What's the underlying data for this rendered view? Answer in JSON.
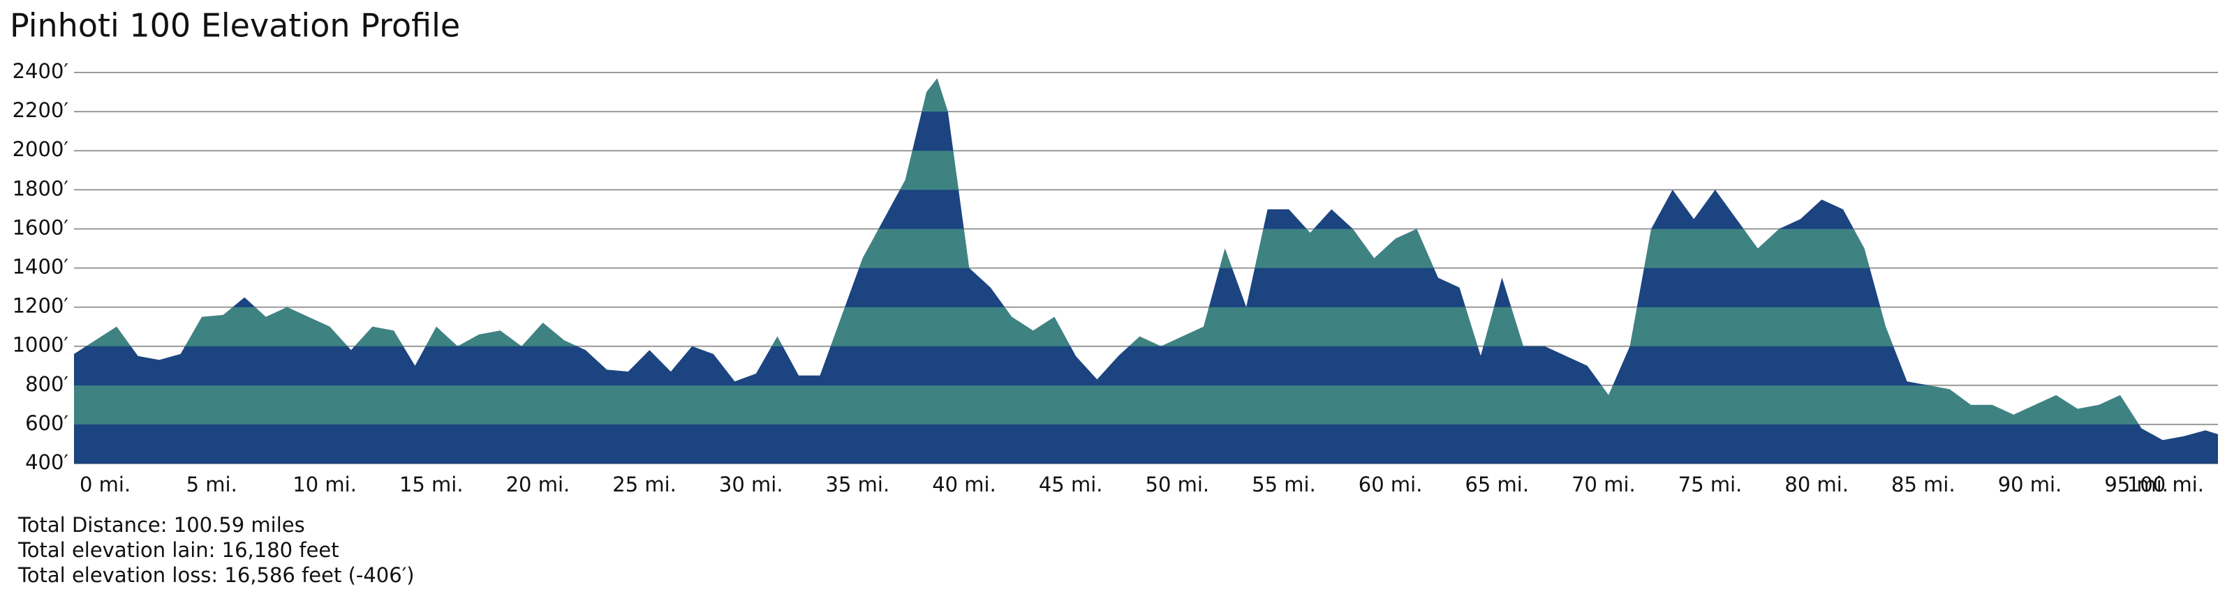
{
  "chart_data": {
    "type": "area",
    "title": "Pinhoti 100 Elevation Profile",
    "x": [
      0,
      1,
      2,
      3,
      4,
      5,
      6,
      7,
      8,
      9,
      10,
      11,
      12,
      13,
      14,
      15,
      16,
      17,
      18,
      19,
      20,
      21,
      22,
      23,
      24,
      25,
      26,
      27,
      28,
      29,
      30,
      31,
      32,
      33,
      34,
      35,
      36,
      37,
      38,
      39,
      40,
      40.5,
      41,
      42,
      43,
      44,
      45,
      46,
      47,
      48,
      49,
      50,
      51,
      52,
      53,
      54,
      55,
      56,
      57,
      58,
      59,
      60,
      61,
      62,
      63,
      64,
      65,
      66,
      67,
      68,
      69,
      70,
      71,
      72,
      73,
      74,
      75,
      76,
      77,
      78,
      79,
      80,
      81,
      82,
      83,
      84,
      85,
      86,
      87,
      88,
      89,
      90,
      91,
      92,
      93,
      94,
      95,
      96,
      97,
      98,
      99,
      100,
      100.59
    ],
    "values": [
      960,
      1030,
      1100,
      950,
      930,
      960,
      1150,
      1160,
      1250,
      1150,
      1200,
      1150,
      1100,
      980,
      1100,
      1080,
      900,
      1100,
      1000,
      1060,
      1080,
      1000,
      1120,
      1030,
      980,
      880,
      870,
      980,
      870,
      1000,
      960,
      820,
      860,
      1050,
      850,
      850,
      1150,
      1450,
      1650,
      1850,
      2300,
      2370,
      2200,
      1400,
      1300,
      1150,
      1080,
      1150,
      950,
      830,
      950,
      1050,
      1000,
      1050,
      1100,
      1500,
      1200,
      1700,
      1700,
      1580,
      1700,
      1600,
      1450,
      1550,
      1600,
      1350,
      1300,
      950,
      1350,
      1000,
      1000,
      950,
      900,
      750,
      1000,
      1600,
      1800,
      1650,
      1800,
      1650,
      1500,
      1600,
      1650,
      1750,
      1700,
      1500,
      1100,
      820,
      800,
      780,
      700,
      700,
      650,
      700,
      750,
      680,
      700,
      750,
      580,
      520,
      540,
      570,
      550
    ],
    "band_colors": [
      "#1b4480",
      "#3e8381"
    ],
    "grid": true,
    "ylim": [
      400,
      2400
    ],
    "yticks": [
      {
        "value": 400,
        "label": "400′"
      },
      {
        "value": 600,
        "label": "600′"
      },
      {
        "value": 800,
        "label": "800′"
      },
      {
        "value": 1000,
        "label": "1000′"
      },
      {
        "value": 1200,
        "label": "1200′"
      },
      {
        "value": 1400,
        "label": "1400′"
      },
      {
        "value": 1600,
        "label": "1600′"
      },
      {
        "value": 1800,
        "label": "1800′"
      },
      {
        "value": 2000,
        "label": "2000′"
      },
      {
        "value": 2200,
        "label": "2200′"
      },
      {
        "value": 2400,
        "label": "2400′"
      }
    ],
    "xlim": [
      0,
      100
    ],
    "xticks": [
      {
        "value": 0,
        "label": "0 mi."
      },
      {
        "value": 5,
        "label": "5 mi."
      },
      {
        "value": 10,
        "label": "10 mi."
      },
      {
        "value": 15,
        "label": "15 mi."
      },
      {
        "value": 20,
        "label": "20 mi."
      },
      {
        "value": 25,
        "label": "25 mi."
      },
      {
        "value": 30,
        "label": "30 mi."
      },
      {
        "value": 35,
        "label": "35 mi."
      },
      {
        "value": 40,
        "label": "40 mi."
      },
      {
        "value": 45,
        "label": "45 mi."
      },
      {
        "value": 50,
        "label": "50 mi."
      },
      {
        "value": 55,
        "label": "55 mi."
      },
      {
        "value": 60,
        "label": "60 mi."
      },
      {
        "value": 65,
        "label": "65 mi."
      },
      {
        "value": 70,
        "label": "70 mi."
      },
      {
        "value": 75,
        "label": "75 mi."
      },
      {
        "value": 80,
        "label": "80 mi."
      },
      {
        "value": 85,
        "label": "85 mi."
      },
      {
        "value": 90,
        "label": "90 mi."
      },
      {
        "value": 95,
        "label": "95 mi."
      },
      {
        "value": 100,
        "label": "100 mi."
      }
    ],
    "notes": [
      "Total Distance: 100.59 miles",
      "Total elevation lain: 16,180 feet",
      "Total elevation loss: 16,586 feet (-406′)"
    ]
  }
}
